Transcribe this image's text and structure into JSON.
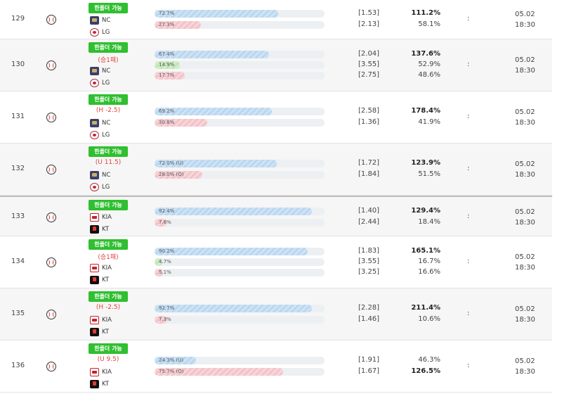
{
  "labels": {
    "badge": "한폴더 가능",
    "colon": ":"
  },
  "rows": [
    {
      "no": "129",
      "handicap": "",
      "teams": [
        {
          "name": "NC",
          "logo": "nc"
        },
        {
          "name": "LG",
          "logo": "lg"
        }
      ],
      "bars": [
        {
          "label": "72.7%",
          "pct": 72.7,
          "color": "blue"
        },
        {
          "label": "27.3%",
          "pct": 27.3,
          "color": "red"
        }
      ],
      "odds": [
        "[1.53]",
        "[2.13]"
      ],
      "returns": [
        {
          "v": "111.2%",
          "bold": true
        },
        {
          "v": "58.1%",
          "bold": false
        }
      ],
      "date": "05.02",
      "time": "18:30"
    },
    {
      "no": "130",
      "handicap": "(승1패)",
      "teams": [
        {
          "name": "NC",
          "logo": "nc"
        },
        {
          "name": "LG",
          "logo": "lg"
        }
      ],
      "bars": [
        {
          "label": "67.4%",
          "pct": 67.4,
          "color": "blue"
        },
        {
          "label": "14.9%",
          "pct": 14.9,
          "color": "green"
        },
        {
          "label": "17.7%",
          "pct": 17.7,
          "color": "red"
        }
      ],
      "odds": [
        "[2.04]",
        "[3.55]",
        "[2.75]"
      ],
      "returns": [
        {
          "v": "137.6%",
          "bold": true
        },
        {
          "v": "52.9%",
          "bold": false
        },
        {
          "v": "48.6%",
          "bold": false
        }
      ],
      "date": "05.02",
      "time": "18:30"
    },
    {
      "no": "131",
      "handicap": "(H -2.5)",
      "teams": [
        {
          "name": "NC",
          "logo": "nc"
        },
        {
          "name": "LG",
          "logo": "lg"
        }
      ],
      "bars": [
        {
          "label": "69.2%",
          "pct": 69.2,
          "color": "blue"
        },
        {
          "label": "30.8%",
          "pct": 30.8,
          "color": "red"
        }
      ],
      "odds": [
        "[2.58]",
        "[1.36]"
      ],
      "returns": [
        {
          "v": "178.4%",
          "bold": true
        },
        {
          "v": "41.9%",
          "bold": false
        }
      ],
      "date": "05.02",
      "time": "18:30"
    },
    {
      "no": "132",
      "handicap": "(U 11.5)",
      "teams": [
        {
          "name": "NC",
          "logo": "nc"
        },
        {
          "name": "LG",
          "logo": "lg"
        }
      ],
      "bars": [
        {
          "label": "72.0% (U)",
          "pct": 72.0,
          "color": "blue"
        },
        {
          "label": "28.0% (O)",
          "pct": 28.0,
          "color": "red"
        }
      ],
      "odds": [
        "[1.72]",
        "[1.84]"
      ],
      "returns": [
        {
          "v": "123.9%",
          "bold": true
        },
        {
          "v": "51.5%",
          "bold": false
        }
      ],
      "date": "05.02",
      "time": "18:30"
    },
    {
      "no": "133",
      "handicap": "",
      "teams": [
        {
          "name": "KIA",
          "logo": "kia"
        },
        {
          "name": "KT",
          "logo": "kt"
        }
      ],
      "bars": [
        {
          "label": "92.4%",
          "pct": 92.4,
          "color": "blue"
        },
        {
          "label": "7.6%",
          "pct": 7.6,
          "color": "red"
        }
      ],
      "odds": [
        "[1.40]",
        "[2.44]"
      ],
      "returns": [
        {
          "v": "129.4%",
          "bold": true
        },
        {
          "v": "18.4%",
          "bold": false
        }
      ],
      "date": "05.02",
      "time": "18:30"
    },
    {
      "no": "134",
      "handicap": "(승1패)",
      "teams": [
        {
          "name": "KIA",
          "logo": "kia"
        },
        {
          "name": "KT",
          "logo": "kt"
        }
      ],
      "bars": [
        {
          "label": "90.2%",
          "pct": 90.2,
          "color": "blue"
        },
        {
          "label": "4.7%",
          "pct": 4.7,
          "color": "green"
        },
        {
          "label": "5.1%",
          "pct": 5.1,
          "color": "red"
        }
      ],
      "odds": [
        "[1.83]",
        "[3.55]",
        "[3.25]"
      ],
      "returns": [
        {
          "v": "165.1%",
          "bold": true
        },
        {
          "v": "16.7%",
          "bold": false
        },
        {
          "v": "16.6%",
          "bold": false
        }
      ],
      "date": "05.02",
      "time": "18:30"
    },
    {
      "no": "135",
      "handicap": "(H -2.5)",
      "teams": [
        {
          "name": "KIA",
          "logo": "kia"
        },
        {
          "name": "KT",
          "logo": "kt"
        }
      ],
      "bars": [
        {
          "label": "92.7%",
          "pct": 92.7,
          "color": "blue"
        },
        {
          "label": "7.3%",
          "pct": 7.3,
          "color": "red"
        }
      ],
      "odds": [
        "[2.28]",
        "[1.46]"
      ],
      "returns": [
        {
          "v": "211.4%",
          "bold": true
        },
        {
          "v": "10.6%",
          "bold": false
        }
      ],
      "date": "05.02",
      "time": "18:30"
    },
    {
      "no": "136",
      "handicap": "(U 9.5)",
      "teams": [
        {
          "name": "KIA",
          "logo": "kia"
        },
        {
          "name": "KT",
          "logo": "kt"
        }
      ],
      "bars": [
        {
          "label": "24.3% (U)",
          "pct": 24.3,
          "color": "blue"
        },
        {
          "label": "75.7% (O)",
          "pct": 75.7,
          "color": "red"
        }
      ],
      "odds": [
        "[1.91]",
        "[1.67]"
      ],
      "returns": [
        {
          "v": "46.3%",
          "bold": false
        },
        {
          "v": "126.5%",
          "bold": true
        }
      ],
      "date": "05.02",
      "time": "18:30"
    }
  ]
}
